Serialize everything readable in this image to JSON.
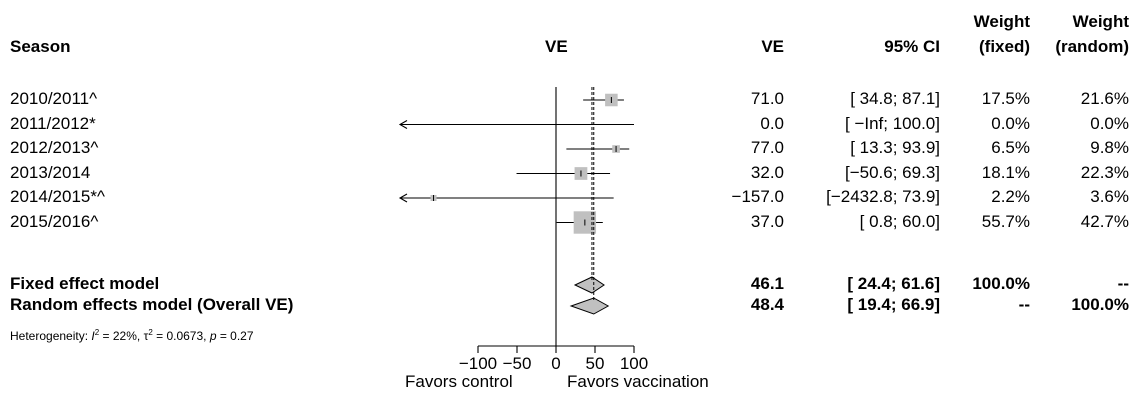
{
  "chart_data": {
    "type": "forest",
    "headers": {
      "season": "Season",
      "plot_label": "VE",
      "ve": "VE",
      "ci": "95% CI",
      "weight_fixed": [
        "Weight",
        "(fixed)"
      ],
      "weight_random": [
        "Weight",
        "(random)"
      ]
    },
    "studies": [
      {
        "label": "2010/2011^",
        "ve": 71.0,
        "lo": 34.8,
        "hi": 87.1,
        "ve_text": "71.0",
        "ci_text": "[  34.8;  87.1]",
        "w_fixed": "17.5%",
        "w_random": "21.6%"
      },
      {
        "label": "2011/2012*",
        "ve": 0.0,
        "lo": null,
        "hi": 100.0,
        "ve_text": "0.0",
        "ci_text": "[  −Inf; 100.0]",
        "w_fixed": "0.0%",
        "w_random": "0.0%"
      },
      {
        "label": "2012/2013^",
        "ve": 77.0,
        "lo": 13.3,
        "hi": 93.9,
        "ve_text": "77.0",
        "ci_text": "[  13.3;  93.9]",
        "w_fixed": "6.5%",
        "w_random": "9.8%"
      },
      {
        "label": "2013/2014",
        "ve": 32.0,
        "lo": -50.6,
        "hi": 69.3,
        "ve_text": "32.0",
        "ci_text": "[−50.6;  69.3]",
        "w_fixed": "18.1%",
        "w_random": "22.3%"
      },
      {
        "label": "2014/2015*^",
        "ve": -157.0,
        "lo": -2432.8,
        "hi": 73.9,
        "ve_text": "−157.0",
        "ci_text": "[−2432.8;  73.9]",
        "w_fixed": "2.2%",
        "w_random": "3.6%"
      },
      {
        "label": "2015/2016^",
        "ve": 37.0,
        "lo": 0.8,
        "hi": 60.0,
        "ve_text": "37.0",
        "ci_text": "[   0.8;  60.0]",
        "w_fixed": "55.7%",
        "w_random": "42.7%"
      }
    ],
    "pooled": [
      {
        "label": "Fixed effect model",
        "ve": 46.1,
        "lo": 24.4,
        "hi": 61.6,
        "ve_text": "46.1",
        "ci_text": "[  24.4;  61.6]",
        "w_fixed": "100.0%",
        "w_random": "--"
      },
      {
        "label": "Random effects model (Overall VE)",
        "ve": 48.4,
        "lo": 19.4,
        "hi": 66.9,
        "ve_text": "48.4",
        "ci_text": "[  19.4;  66.9]",
        "w_fixed": "--",
        "w_random": "100.0%"
      }
    ],
    "heterogeneity": {
      "prefix": "Heterogeneity: ",
      "i2": "I",
      "i2_val": " = 22%, ",
      "tau": "τ",
      "tau_val": " = 0.0673, ",
      "p": "p",
      "p_val": " = 0.27",
      "sup": "2"
    },
    "xlim": [
      -100,
      100
    ],
    "x_ticks": [
      -100,
      -50,
      0,
      50,
      100
    ],
    "x_tick_labels": [
      "−100",
      "−50",
      "0",
      "50",
      "100"
    ],
    "xlabel_left": "Favors control",
    "xlabel_right": "Favors vaccination",
    "colors": {
      "box": "#c0c0c0",
      "diamond": "#c0c0c0",
      "line": "#000000"
    }
  }
}
